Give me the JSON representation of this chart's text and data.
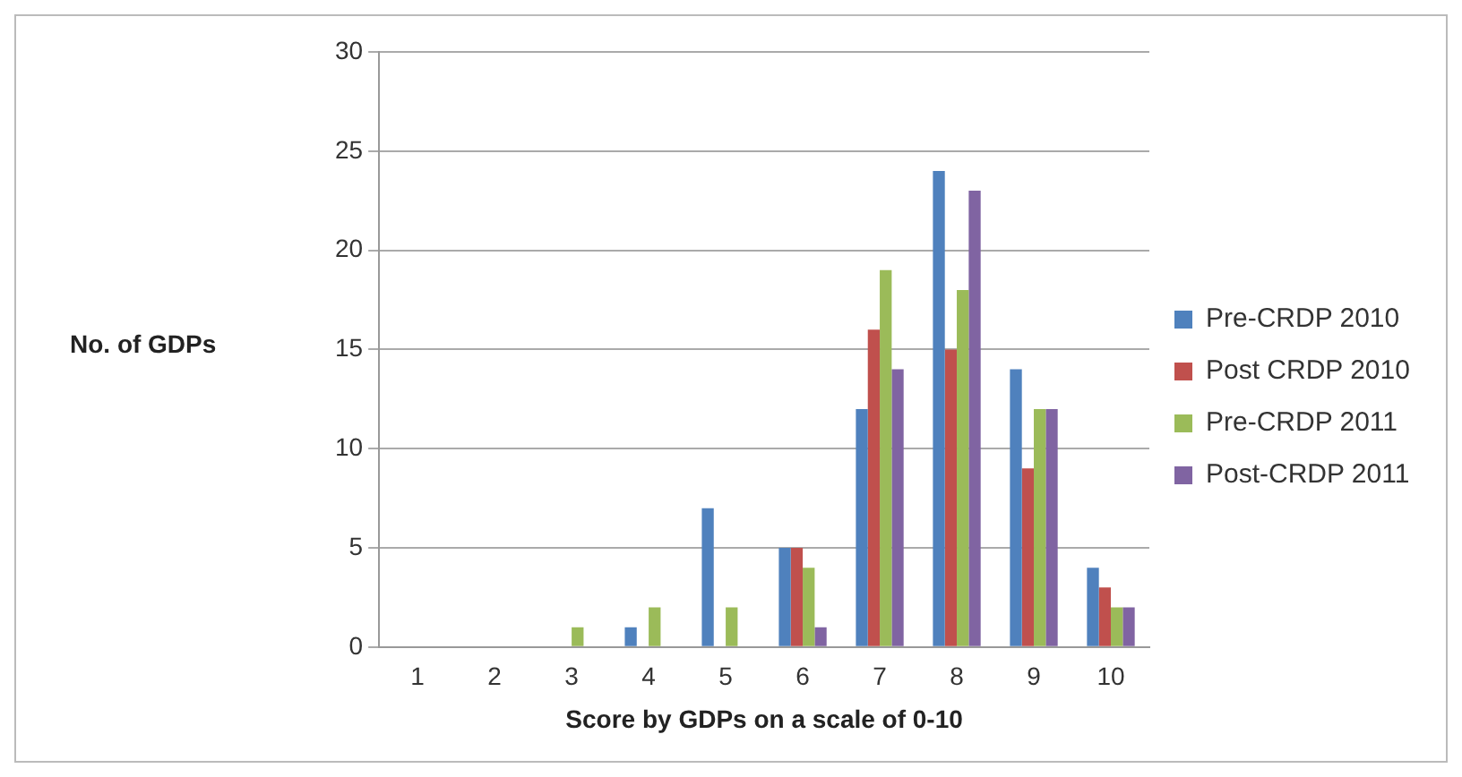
{
  "chart_data": {
    "type": "bar",
    "xlabel": "Score by GDPs on a scale of 0-10",
    "ylabel": "No. of GDPs",
    "categories": [
      "1",
      "2",
      "3",
      "4",
      "5",
      "6",
      "7",
      "8",
      "9",
      "10"
    ],
    "series": [
      {
        "name": "Pre-CRDP 2010",
        "color": "#4f81bd",
        "values": [
          0,
          0,
          0,
          1,
          7,
          5,
          12,
          24,
          14,
          4
        ]
      },
      {
        "name": "Post CRDP 2010",
        "color": "#c0504d",
        "values": [
          0,
          0,
          0,
          0,
          0,
          5,
          16,
          15,
          9,
          3
        ]
      },
      {
        "name": "Pre-CRDP 2011",
        "color": "#9bbb59",
        "values": [
          0,
          0,
          1,
          2,
          2,
          4,
          19,
          18,
          12,
          2
        ]
      },
      {
        "name": "Post-CRDP 2011",
        "color": "#8064a2",
        "values": [
          0,
          0,
          0,
          0,
          0,
          1,
          14,
          23,
          12,
          2
        ]
      }
    ],
    "ylim": [
      0,
      30
    ],
    "yticks": [
      0,
      5,
      10,
      15,
      20,
      25,
      30
    ],
    "grid": "y",
    "legend": "right"
  }
}
